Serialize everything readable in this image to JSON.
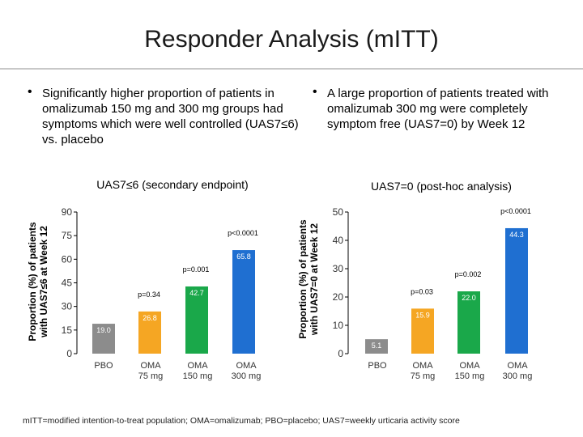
{
  "title": "Responder Analysis (mITT)",
  "bullets": {
    "left": "Significantly higher proportion of patients in omalizumab 150 mg and 300 mg groups had symptoms which were well controlled (UAS7≤6) vs. placebo",
    "right": "A large proportion of patients treated with omalizumab 300 mg were completely symptom free (UAS7=0) by Week 12",
    "marker": "•"
  },
  "footnote": "mITT=modified intention-to-treat population; OMA=omalizumab; PBO=placebo; UAS7=weekly urticaria activity score",
  "chart_data": [
    {
      "type": "bar",
      "title": "UAS7≤6 (secondary endpoint)",
      "ylabel": "Proportion (%) of patients with UAS7≤6 at Week 12",
      "ylim": [
        0,
        90
      ],
      "yticks": [
        0,
        15,
        30,
        45,
        60,
        75,
        90
      ],
      "categories": [
        [
          "PBO"
        ],
        [
          "OMA",
          "75 mg"
        ],
        [
          "OMA",
          "150 mg"
        ],
        [
          "OMA",
          "300 mg"
        ]
      ],
      "values": [
        19.0,
        26.8,
        42.7,
        65.8
      ],
      "value_labels": [
        "19.0",
        "26.8",
        "42.7",
        "65.8"
      ],
      "colors": [
        "#8c8c8c",
        "#f5a623",
        "#1aa84a",
        "#1f6fd1"
      ],
      "pvalues": [
        "",
        "p=0.34",
        "p=0.001",
        "p<0.0001"
      ]
    },
    {
      "type": "bar",
      "title": "UAS7=0 (post-hoc analysis)",
      "ylabel": "Proportion (%) of patients with UAS7=0 at Week 12",
      "ylim": [
        0,
        50
      ],
      "yticks": [
        0,
        10,
        20,
        30,
        40,
        50
      ],
      "categories": [
        [
          "PBO"
        ],
        [
          "OMA",
          "75 mg"
        ],
        [
          "OMA",
          "150 mg"
        ],
        [
          "OMA",
          "300 mg"
        ]
      ],
      "values": [
        5.1,
        15.9,
        22.0,
        44.3
      ],
      "value_labels": [
        "5.1",
        "15.9",
        "22.0",
        "44.3"
      ],
      "colors": [
        "#8c8c8c",
        "#f5a623",
        "#1aa84a",
        "#1f6fd1"
      ],
      "pvalues": [
        "",
        "p=0.03",
        "p=0.002",
        "p<0.0001"
      ]
    }
  ]
}
